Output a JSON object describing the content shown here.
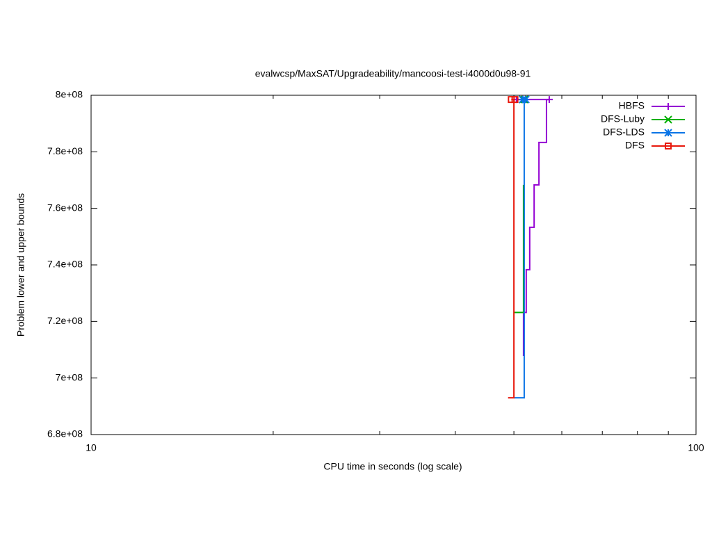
{
  "chart_data": {
    "type": "step-line",
    "title": "evalwcsp/MaxSAT/Upgradeability/mancoosi-test-i4000d0u98-91",
    "x_label": "CPU time in seconds (log scale)",
    "y_label": "Problem lower and upper bounds",
    "x_log": true,
    "xlim": [
      10,
      100
    ],
    "xticks": [
      10,
      100
    ],
    "xminorticks": [
      20,
      30,
      40,
      50,
      60,
      70,
      80,
      90
    ],
    "ylim": [
      680000000,
      800000000
    ],
    "yticks": [
      {
        "value": 680000000,
        "label": "6.8e+08"
      },
      {
        "value": 700000000,
        "label": "7e+08"
      },
      {
        "value": 720000000,
        "label": "7.2e+08"
      },
      {
        "value": 740000000,
        "label": "7.4e+08"
      },
      {
        "value": 760000000,
        "label": "7.6e+08"
      },
      {
        "value": 780000000,
        "label": "7.8e+08"
      },
      {
        "value": 800000000,
        "label": "8e+08"
      }
    ],
    "legend": "top-right",
    "series": [
      {
        "name": "HBFS",
        "color": "#9400d3",
        "marker": "plus",
        "x": [
          51.86,
          51.86,
          52.4,
          52.4,
          53.1,
          53.1,
          54.0,
          54.0,
          55.0,
          55.0,
          56.6,
          56.6,
          57.2
        ],
        "values": [
          707800000,
          723200000,
          723200000,
          738300000,
          738300000,
          753300000,
          753300000,
          768300000,
          768300000,
          783300000,
          783300000,
          798500000,
          798500000
        ],
        "upper_x": [
          50.5,
          57.2
        ],
        "upper_values": [
          798500000,
          798500000
        ]
      },
      {
        "name": "DFS-Luby",
        "color": "#00b000",
        "marker": "cross",
        "x": [
          50.0,
          51.86,
          51.86
        ],
        "values": [
          723200000,
          723200000,
          768300000
        ],
        "upper_x": [
          51.7,
          52.0
        ],
        "upper_values": [
          798500000,
          798500000
        ]
      },
      {
        "name": "DFS-LDS",
        "color": "#0a74e6",
        "marker": "star",
        "x": [
          50.0,
          52.0,
          52.0
        ],
        "values": [
          693000000,
          693000000,
          798500000
        ],
        "upper_x": [
          51.7,
          52.3
        ],
        "upper_values": [
          798500000,
          798500000
        ]
      },
      {
        "name": "DFS",
        "color": "#e8180c",
        "marker": "square",
        "x": [
          48.9,
          50.0,
          50.0
        ],
        "values": [
          693000000,
          693000000,
          798500000
        ],
        "upper_x": [
          49.5,
          50.2
        ],
        "upper_values": [
          798500000,
          798500000
        ]
      }
    ]
  }
}
